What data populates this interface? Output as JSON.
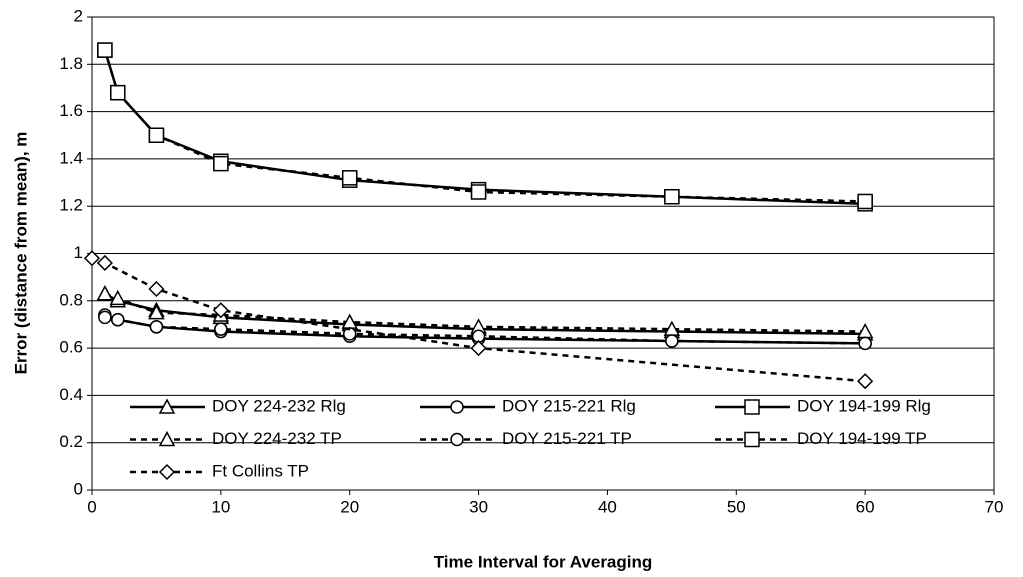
{
  "chart_data": {
    "type": "line",
    "xlabel": "Time Interval for Averaging",
    "ylabel": "Error (distance from mean), m",
    "xlim": [
      0,
      70
    ],
    "xticks": [
      0,
      10,
      20,
      30,
      40,
      50,
      60,
      70
    ],
    "ylim": [
      0,
      2
    ],
    "yticks": [
      0,
      0.2,
      0.4,
      0.6,
      0.8,
      1,
      1.2,
      1.4,
      1.6,
      1.8,
      2
    ],
    "grid": true,
    "legend": "lower left",
    "series": [
      {
        "name": "DOY 224-232 Rlg",
        "color": "#000000",
        "line_style": "solid",
        "marker": "triangle",
        "x": [
          1,
          2,
          5,
          10,
          20,
          30,
          45,
          60
        ],
        "values": [
          0.83,
          0.8,
          0.76,
          0.73,
          0.7,
          0.68,
          0.67,
          0.66
        ]
      },
      {
        "name": "DOY 215-221 Rlg",
        "color": "#000000",
        "line_style": "solid",
        "marker": "circle",
        "x": [
          1,
          2,
          5,
          10,
          20,
          30,
          45,
          60
        ],
        "values": [
          0.74,
          0.72,
          0.69,
          0.67,
          0.65,
          0.64,
          0.63,
          0.62
        ]
      },
      {
        "name": "DOY 194-199 Rlg",
        "color": "#000000",
        "line_style": "solid",
        "marker": "square",
        "x": [
          1,
          2,
          5,
          10,
          20,
          30,
          45,
          60
        ],
        "values": [
          1.86,
          1.68,
          1.5,
          1.39,
          1.31,
          1.27,
          1.24,
          1.21
        ]
      },
      {
        "name": "DOY 224-232 TP",
        "color": "#000000",
        "line_style": "dashed",
        "marker": "triangle",
        "x": [
          1,
          2,
          5,
          10,
          20,
          30,
          45,
          60
        ],
        "values": [
          0.83,
          0.81,
          0.75,
          0.74,
          0.71,
          0.69,
          0.68,
          0.67
        ]
      },
      {
        "name": "DOY 215-221 TP",
        "color": "#000000",
        "line_style": "dashed",
        "marker": "circle",
        "x": [
          1,
          2,
          5,
          10,
          20,
          30,
          45,
          60
        ],
        "values": [
          0.73,
          0.72,
          0.69,
          0.68,
          0.66,
          0.65,
          0.63,
          0.62
        ]
      },
      {
        "name": "DOY 194-199 TP",
        "color": "#000000",
        "line_style": "dashed",
        "marker": "square",
        "x": [
          1,
          2,
          5,
          10,
          20,
          30,
          45,
          60
        ],
        "values": [
          1.86,
          1.68,
          1.5,
          1.38,
          1.32,
          1.26,
          1.24,
          1.22
        ]
      },
      {
        "name": "Ft Collins TP",
        "color": "#000000",
        "line_style": "dashed",
        "marker": "diamond",
        "x": [
          0,
          1,
          5,
          10,
          30,
          60
        ],
        "values": [
          0.98,
          0.96,
          0.85,
          0.76,
          0.6,
          0.46
        ]
      }
    ]
  }
}
